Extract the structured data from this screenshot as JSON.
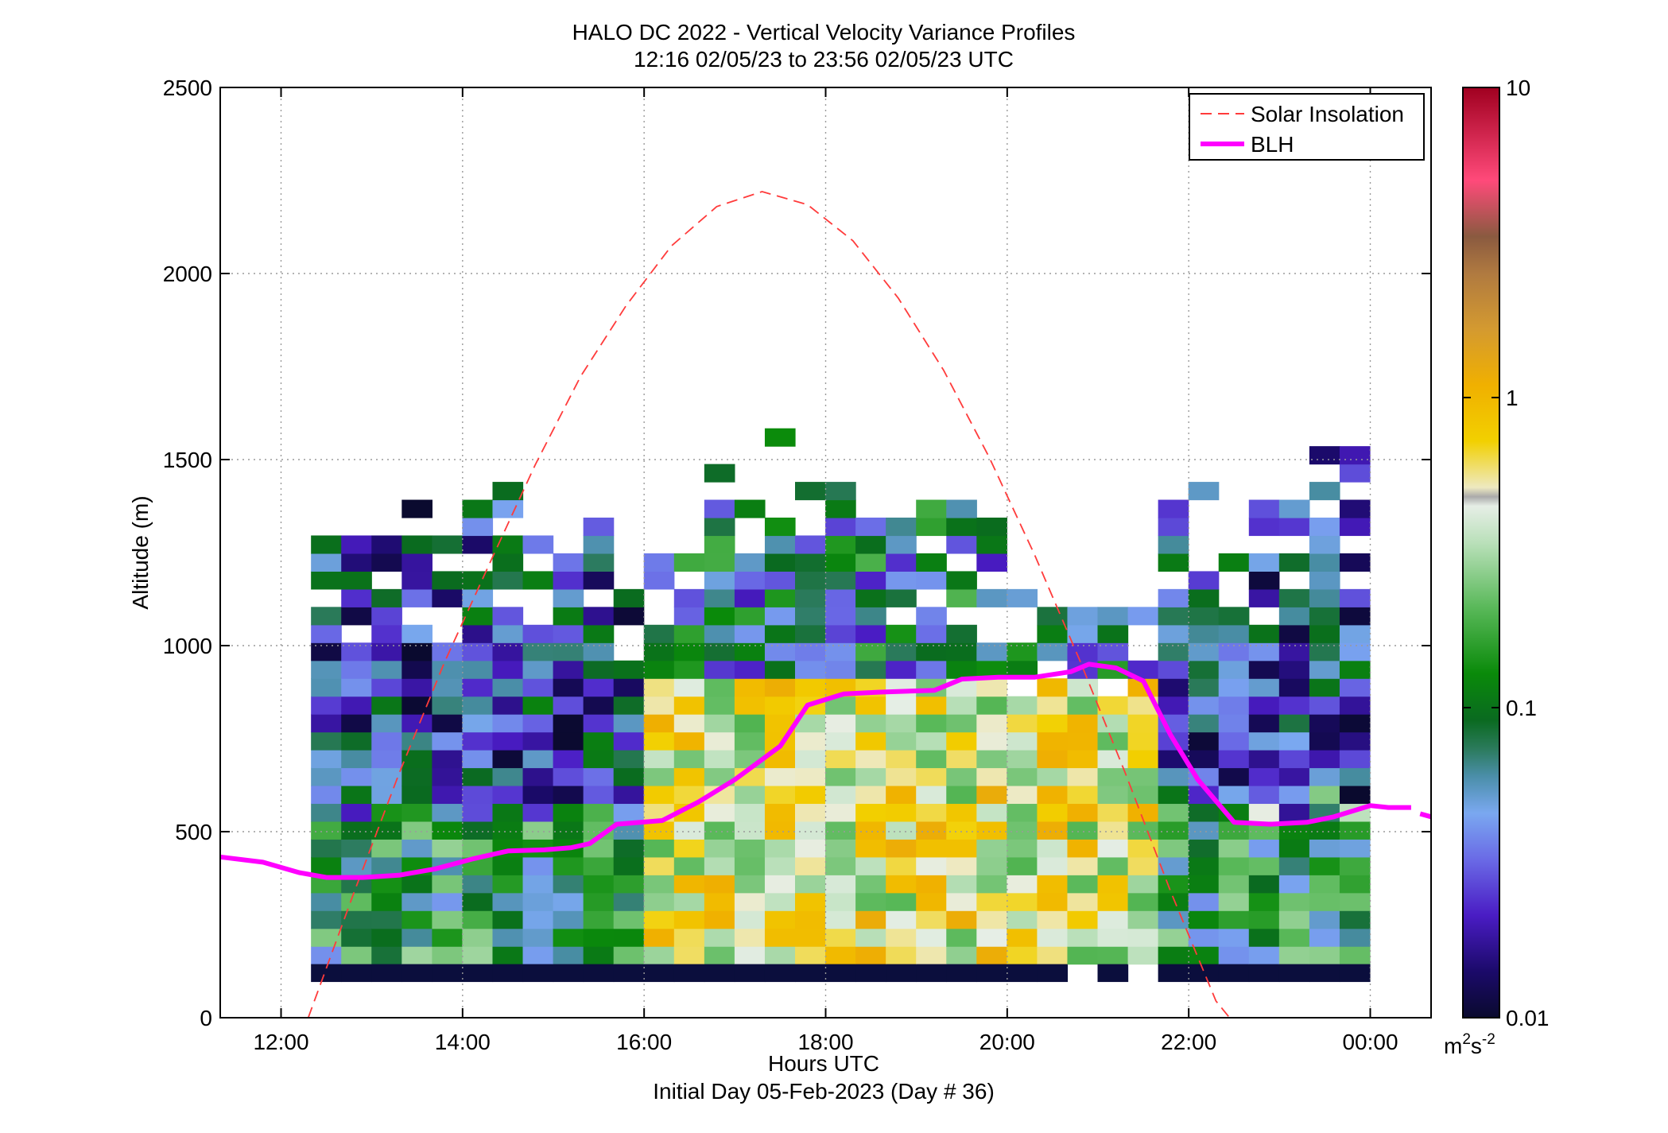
{
  "chart_data": {
    "type": "heatmap",
    "title": "HALO DC 2022 - Vertical Velocity Variance Profiles",
    "subtitle": "12:16 02/05/23 to 23:56 02/05/23  UTC",
    "xlabel": "Hours UTC",
    "xlabel_sub": "Initial Day 05-Feb-2023 (Day # 36)",
    "ylabel": "Altitude (m)",
    "xlim": [
      11.33,
      24.67
    ],
    "ylim": [
      0,
      2500
    ],
    "x_ticks": [
      12,
      14,
      16,
      18,
      20,
      22,
      24
    ],
    "x_tick_labels": [
      "12:00",
      "14:00",
      "16:00",
      "18:00",
      "20:00",
      "22:00",
      "00:00"
    ],
    "y_ticks": [
      0,
      500,
      1000,
      1500,
      2000,
      2500
    ],
    "y_tick_labels": [
      "0",
      "500",
      "1000",
      "1500",
      "2000",
      "2500"
    ],
    "grid": true,
    "legend_position": "top-right",
    "colorbar": {
      "scale": "log",
      "min": 0.01,
      "max": 10,
      "ticks": [
        0.01,
        0.1,
        1,
        10
      ],
      "tick_labels": [
        "0.01",
        "0.1",
        "1",
        "10"
      ],
      "unit_base": "m",
      "unit_sup1": "2",
      "unit_mid": "s",
      "unit_sup2": "-2"
    },
    "heatmap": {
      "x_start": 12.33,
      "x_step": 0.3333,
      "n_columns": 35,
      "y_step": 48,
      "y_bottom": 96,
      "value_note": "variance (m2 s-2), row index 0 = 96-144 m",
      "top_altitude_by_column": [
        1296,
        1296,
        1344,
        1392,
        1296,
        1392,
        1440,
        1344,
        1248,
        1344,
        1200,
        1296,
        1296,
        1488,
        1392,
        1584,
        1440,
        1440,
        1344,
        1344,
        1440,
        1392,
        1344,
        1152,
        1104,
        1104,
        1104,
        1248,
        1392,
        1488,
        1392,
        1392,
        1392,
        1536,
        1536
      ],
      "surface_layer": {
        "altitude": [
          96,
          144
        ],
        "value": 0.01,
        "gap_columns": [
          25,
          27
        ]
      },
      "regimes": [
        {
          "x_range": [
            12.33,
            16.0
          ],
          "typical_value": 0.05,
          "description_range": [
            0.015,
            0.2
          ]
        },
        {
          "x_range": [
            16.0,
            21.7
          ],
          "typical_value": 0.6,
          "description_range": [
            0.2,
            1.2
          ]
        },
        {
          "x_range": [
            21.7,
            24.0
          ],
          "typical_value": 0.08,
          "description_range": [
            0.01,
            0.8
          ]
        }
      ]
    },
    "series": [
      {
        "name": "Solar Insolation",
        "style": "dashed",
        "color": "#ff3b3b",
        "x": [
          12.3,
          12.8,
          13.3,
          13.8,
          14.3,
          14.8,
          15.3,
          15.8,
          16.3,
          16.8,
          17.3,
          17.8,
          18.3,
          18.8,
          19.3,
          19.8,
          20.3,
          20.8,
          21.3,
          21.8,
          22.3,
          22.45
        ],
        "y": [
          0,
          334,
          656,
          955,
          1222,
          1486,
          1723,
          1913,
          2074,
          2180,
          2220,
          2185,
          2088,
          1934,
          1740,
          1507,
          1245,
          960,
          658,
          340,
          45,
          0
        ]
      },
      {
        "name": "BLH",
        "style": "solid",
        "color": "#ff00ff",
        "x": [
          11.33,
          11.8,
          12.2,
          12.5,
          12.9,
          13.3,
          13.7,
          14.1,
          14.5,
          14.9,
          15.2,
          15.4,
          15.7,
          16.2,
          16.6,
          17.0,
          17.5,
          17.8,
          18.2,
          18.6,
          19.2,
          19.5,
          19.9,
          20.3,
          20.7,
          20.9,
          21.2,
          21.5,
          21.8,
          22.1,
          22.5,
          22.9,
          23.3,
          23.6,
          24.0,
          24.2,
          24.45
        ],
        "y": [
          432,
          418,
          390,
          377,
          377,
          383,
          400,
          426,
          448,
          451,
          457,
          468,
          520,
          530,
          580,
          640,
          730,
          840,
          870,
          875,
          880,
          910,
          915,
          915,
          930,
          950,
          940,
          905,
          760,
          640,
          525,
          520,
          525,
          540,
          570,
          565,
          565
        ]
      },
      {
        "name": "",
        "style": "solid",
        "color": "#ff00ff",
        "x": [
          24.55,
          24.67
        ],
        "y": [
          548,
          540
        ]
      }
    ]
  },
  "colors": {
    "solar": "#ff3b3b",
    "blh": "#ff00ff",
    "surface": "#0b0e3d",
    "grid": "#9a9a9a"
  }
}
